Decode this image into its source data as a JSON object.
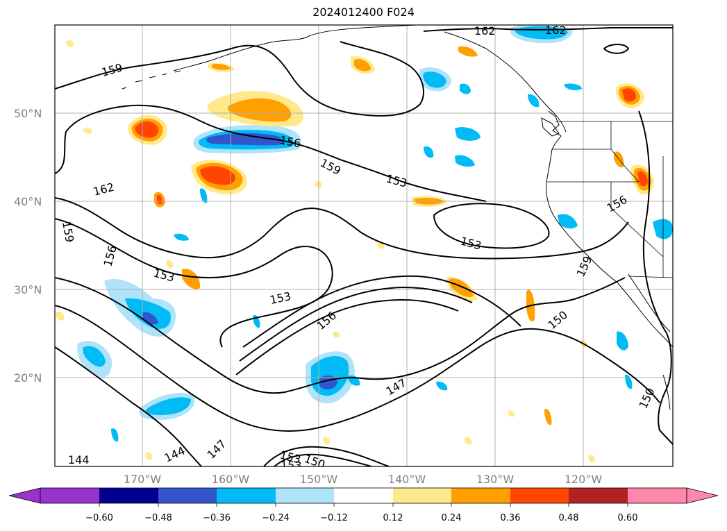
{
  "title": "2024012400 F024",
  "map": {
    "lat_labels": [
      "50°N",
      "40°N",
      "30°N",
      "20°N"
    ],
    "lon_labels": [
      "170°W",
      "160°W",
      "150°W",
      "140°W",
      "130°W",
      "120°W"
    ],
    "contour_labels": [
      "159",
      "162",
      "162",
      "162",
      "156",
      "159",
      "153",
      "159",
      "156",
      "153",
      "153",
      "153",
      "156",
      "156",
      "150",
      "147",
      "150",
      "144",
      "144",
      "147",
      "153",
      "150",
      "153",
      "159"
    ],
    "colors": {
      "neg_060_below": "#9933cc",
      "neg_060_048": "#000090",
      "neg_048_036": "#3355cc",
      "neg_036_024": "#00bbf5",
      "neg_024_012": "#aee3f9",
      "pos_012_024": "#ffe98a",
      "pos_024_036": "#ffa000",
      "pos_036_048": "#ff4500",
      "pos_048_060": "#b22222",
      "pos_060_above": "#ff88aa"
    }
  },
  "colorbar": {
    "ticks": [
      "−0.60",
      "−0.48",
      "−0.36",
      "−0.24",
      "−0.12",
      "0.12",
      "0.24",
      "0.36",
      "0.48",
      "0.60"
    ]
  }
}
